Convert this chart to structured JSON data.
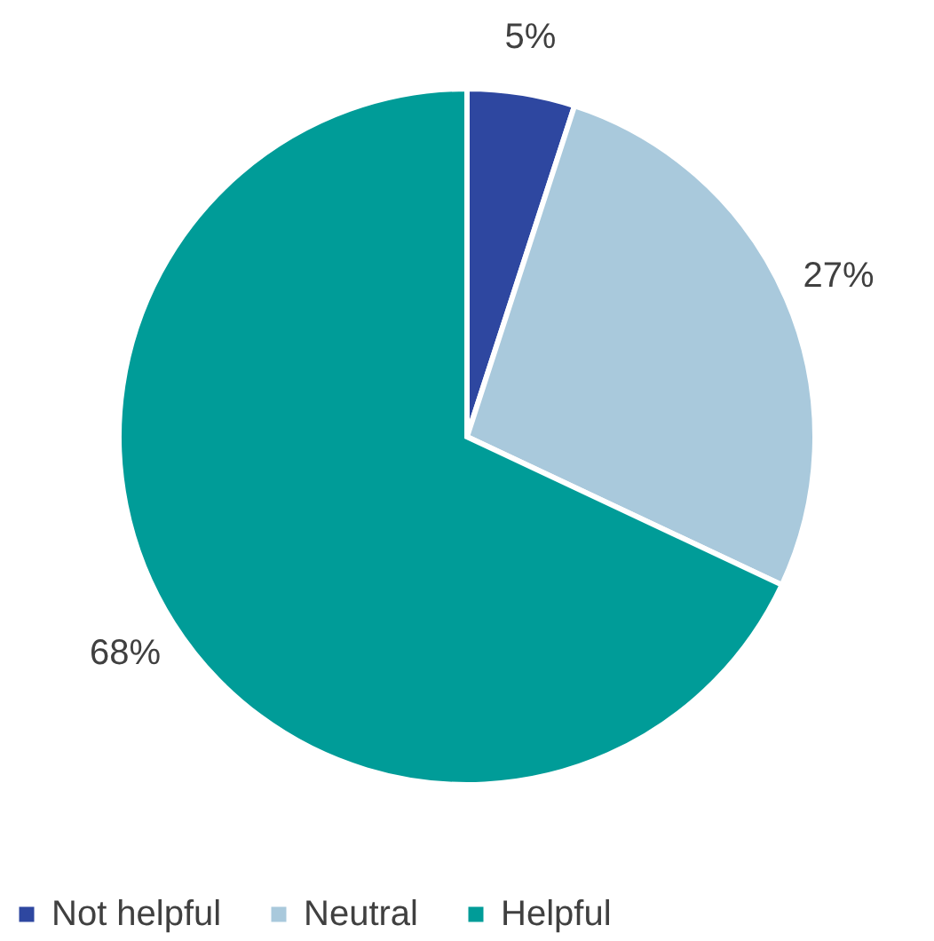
{
  "chart_data": {
    "type": "pie",
    "categories": [
      "Not helpful",
      "Neutral",
      "Helpful"
    ],
    "values": [
      5,
      27,
      68
    ],
    "colors": [
      "#2e47a0",
      "#a9c9dc",
      "#009c98"
    ],
    "value_labels": [
      "5%",
      "27%",
      "68%"
    ],
    "legend": "bottom"
  }
}
